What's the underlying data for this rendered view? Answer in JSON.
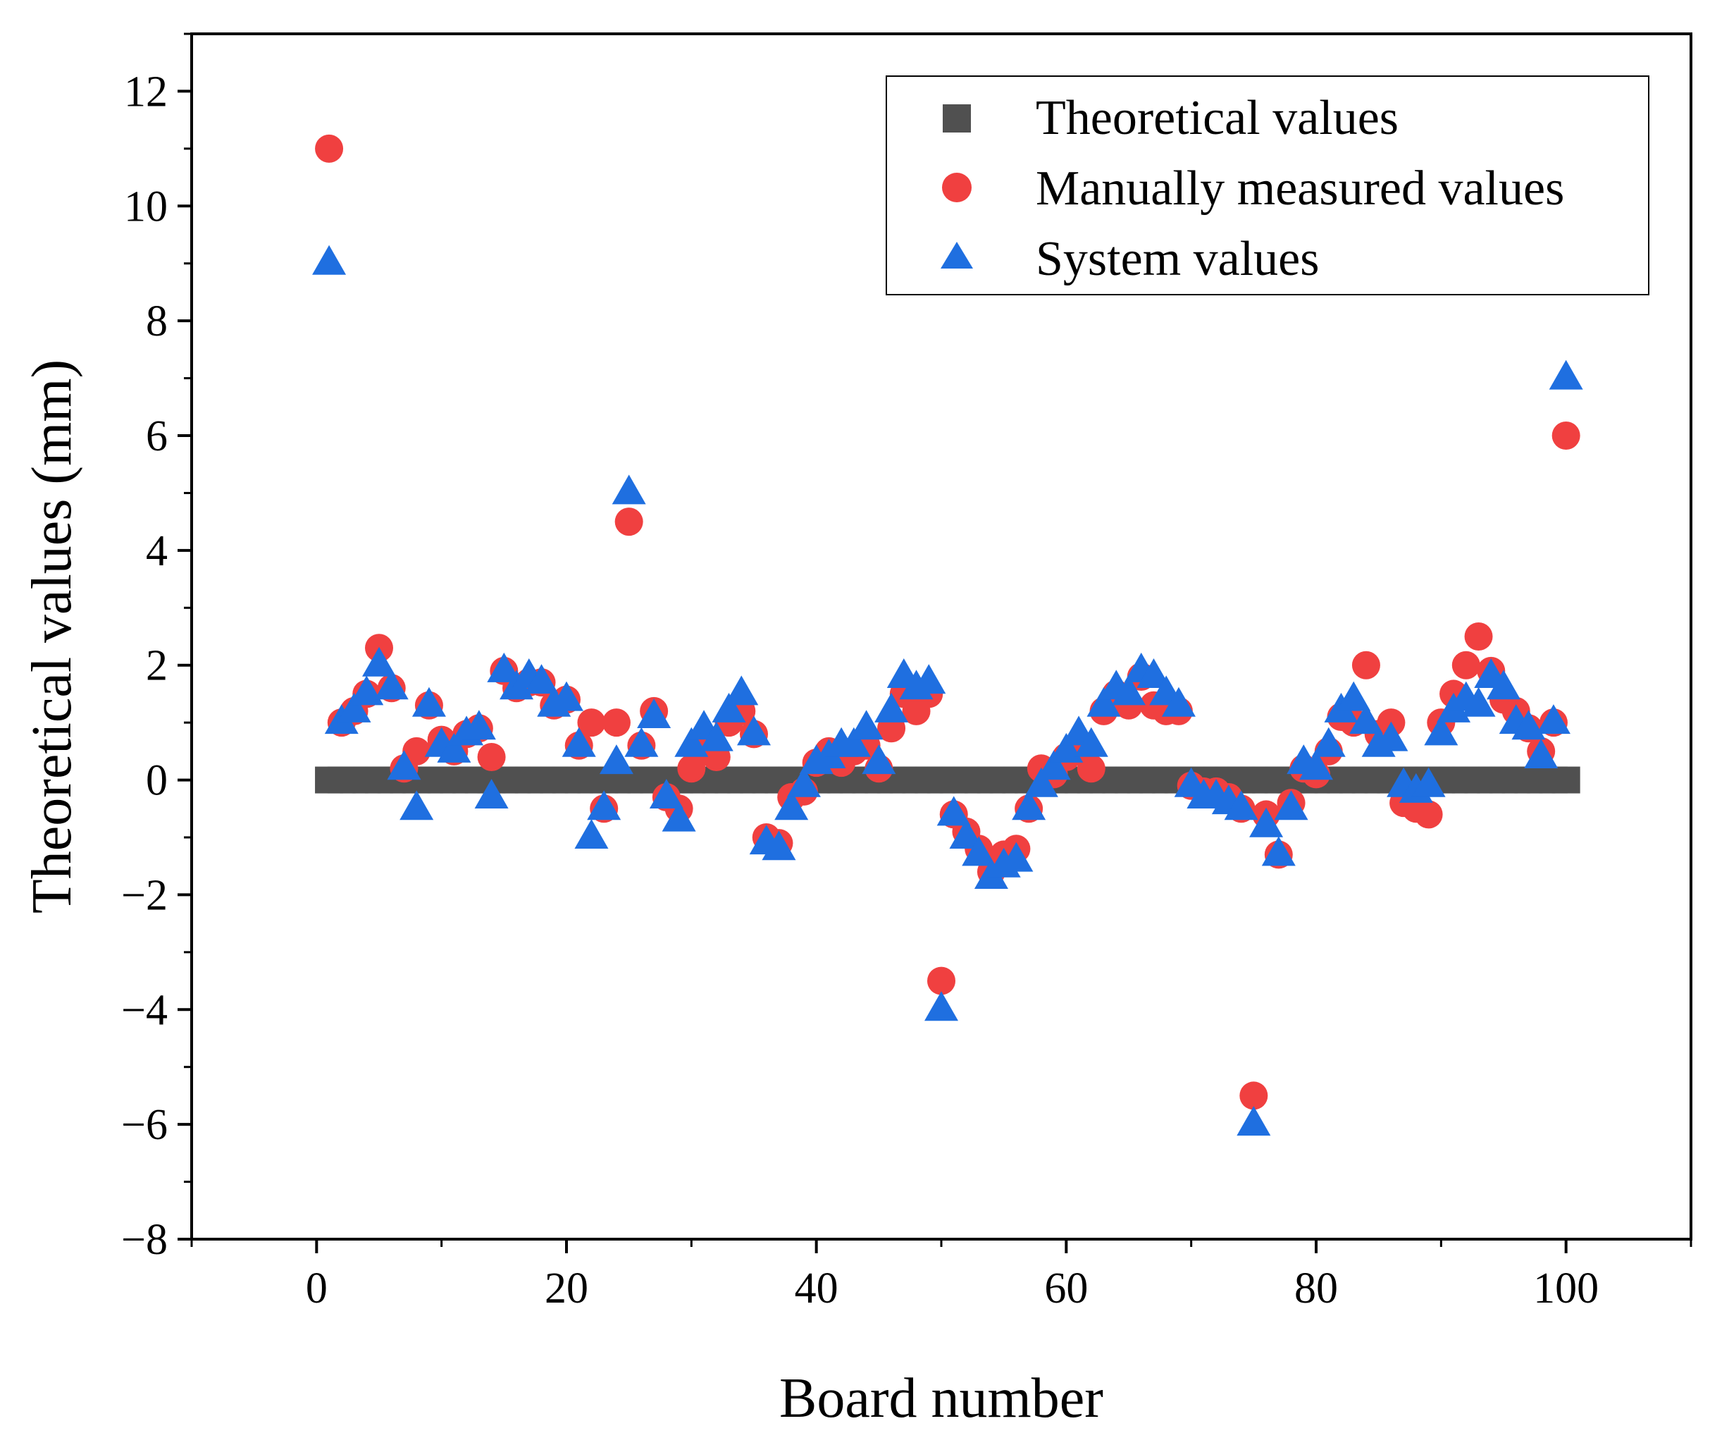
{
  "chart_data": {
    "type": "scatter",
    "title": "",
    "xlabel": "Board number",
    "ylabel": "Theoretical values (mm)",
    "xlim": [
      -10,
      110
    ],
    "ylim": [
      -8,
      13
    ],
    "x_ticks": [
      0,
      20,
      40,
      60,
      80,
      100
    ],
    "y_ticks": [
      -8,
      -6,
      -4,
      -2,
      0,
      2,
      4,
      6,
      8,
      10,
      12
    ],
    "x_tick_labels": [
      "0",
      "20",
      "40",
      "60",
      "80",
      "100"
    ],
    "y_tick_labels": [
      "−8",
      "−6",
      "−4",
      "−2",
      "0",
      "2",
      "4",
      "6",
      "8",
      "10",
      "12"
    ],
    "legend_position": "top-right",
    "colors": {
      "theoretical": "#505050",
      "manual": "#f04040",
      "system": "#1f6fe0"
    },
    "series": [
      {
        "name": "Theoretical values",
        "marker": "square",
        "x": [
          1,
          2,
          3,
          4,
          5,
          6,
          7,
          8,
          9,
          10,
          11,
          12,
          13,
          14,
          15,
          16,
          17,
          18,
          19,
          20,
          21,
          22,
          23,
          24,
          25,
          26,
          27,
          28,
          29,
          30,
          31,
          32,
          33,
          34,
          35,
          36,
          37,
          38,
          39,
          40,
          41,
          42,
          43,
          44,
          45,
          46,
          47,
          48,
          49,
          50,
          51,
          52,
          53,
          54,
          55,
          56,
          57,
          58,
          59,
          60,
          61,
          62,
          63,
          64,
          65,
          66,
          67,
          68,
          69,
          70,
          71,
          72,
          73,
          74,
          75,
          76,
          77,
          78,
          79,
          80,
          81,
          82,
          83,
          84,
          85,
          86,
          87,
          88,
          89,
          90,
          91,
          92,
          93,
          94,
          95,
          96,
          97,
          98,
          99,
          100
        ],
        "values": [
          0,
          0,
          0,
          0,
          0,
          0,
          0,
          0,
          0,
          0,
          0,
          0,
          0,
          0,
          0,
          0,
          0,
          0,
          0,
          0,
          0,
          0,
          0,
          0,
          0,
          0,
          0,
          0,
          0,
          0,
          0,
          0,
          0,
          0,
          0,
          0,
          0,
          0,
          0,
          0,
          0,
          0,
          0,
          0,
          0,
          0,
          0,
          0,
          0,
          0,
          0,
          0,
          0,
          0,
          0,
          0,
          0,
          0,
          0,
          0,
          0,
          0,
          0,
          0,
          0,
          0,
          0,
          0,
          0,
          0,
          0,
          0,
          0,
          0,
          0,
          0,
          0,
          0,
          0,
          0,
          0,
          0,
          0,
          0,
          0,
          0,
          0,
          0,
          0,
          0,
          0,
          0,
          0,
          0,
          0,
          0,
          0,
          0,
          0,
          0
        ]
      },
      {
        "name": "Manually measured values",
        "marker": "circle",
        "x": [
          1,
          2,
          3,
          4,
          5,
          6,
          7,
          8,
          9,
          10,
          11,
          12,
          13,
          14,
          15,
          16,
          17,
          18,
          19,
          20,
          21,
          22,
          23,
          24,
          25,
          26,
          27,
          28,
          29,
          30,
          31,
          32,
          33,
          34,
          35,
          36,
          37,
          38,
          39,
          40,
          41,
          42,
          43,
          44,
          45,
          46,
          47,
          48,
          49,
          50,
          51,
          52,
          53,
          54,
          55,
          56,
          57,
          58,
          59,
          60,
          61,
          62,
          63,
          64,
          65,
          66,
          67,
          68,
          69,
          70,
          71,
          72,
          73,
          74,
          75,
          76,
          77,
          78,
          79,
          80,
          81,
          82,
          83,
          84,
          85,
          86,
          87,
          88,
          89,
          90,
          91,
          92,
          93,
          94,
          95,
          96,
          97,
          98,
          99,
          100
        ],
        "values": [
          11,
          1.0,
          1.2,
          1.5,
          2.3,
          1.6,
          0.2,
          0.5,
          1.3,
          0.7,
          0.5,
          0.8,
          0.9,
          0.4,
          1.9,
          1.6,
          1.7,
          1.7,
          1.3,
          1.4,
          0.6,
          1.0,
          -0.5,
          1.0,
          4.5,
          0.6,
          1.2,
          -0.3,
          -0.5,
          0.2,
          0.5,
          0.4,
          1.0,
          1.2,
          0.8,
          -1.0,
          -1.1,
          -0.3,
          -0.2,
          0.3,
          0.5,
          0.3,
          0.5,
          0.6,
          0.2,
          0.9,
          1.5,
          1.2,
          1.5,
          -3.5,
          -0.6,
          -0.9,
          -1.2,
          -1.6,
          -1.3,
          -1.2,
          -0.5,
          0.2,
          0.1,
          0.4,
          0.5,
          0.2,
          1.2,
          1.5,
          1.3,
          1.8,
          1.3,
          1.2,
          1.2,
          -0.1,
          -0.2,
          -0.2,
          -0.3,
          -0.5,
          -5.5,
          -0.6,
          -1.3,
          -0.4,
          0.2,
          0.1,
          0.5,
          1.1,
          1.0,
          2.0,
          0.8,
          1.0,
          -0.4,
          -0.5,
          -0.6,
          1.0,
          1.5,
          2.0,
          2.5,
          1.9,
          1.4,
          1.2,
          0.9,
          0.5,
          1.0,
          6.0
        ]
      },
      {
        "name": "System values",
        "marker": "triangle",
        "x": [
          1,
          2,
          3,
          4,
          5,
          6,
          7,
          8,
          9,
          10,
          11,
          12,
          13,
          14,
          15,
          16,
          17,
          18,
          19,
          20,
          21,
          22,
          23,
          24,
          25,
          26,
          27,
          28,
          29,
          30,
          31,
          32,
          33,
          34,
          35,
          36,
          37,
          38,
          39,
          40,
          41,
          42,
          43,
          44,
          45,
          46,
          47,
          48,
          49,
          50,
          51,
          52,
          53,
          54,
          55,
          56,
          57,
          58,
          59,
          60,
          61,
          62,
          63,
          64,
          65,
          66,
          67,
          68,
          69,
          70,
          71,
          72,
          73,
          74,
          75,
          76,
          77,
          78,
          79,
          80,
          81,
          82,
          83,
          84,
          85,
          86,
          87,
          88,
          89,
          90,
          91,
          92,
          93,
          94,
          95,
          96,
          97,
          98,
          99,
          100
        ],
        "values": [
          9,
          1.0,
          1.2,
          1.5,
          2.0,
          1.6,
          0.2,
          -0.5,
          1.3,
          0.6,
          0.5,
          0.8,
          0.9,
          -0.3,
          1.9,
          1.6,
          1.8,
          1.7,
          1.3,
          1.4,
          0.6,
          -1.0,
          -0.5,
          0.3,
          5.0,
          0.6,
          1.1,
          -0.3,
          -0.7,
          0.6,
          0.9,
          0.7,
          1.2,
          1.5,
          0.8,
          -1.1,
          -1.2,
          -0.5,
          -0.1,
          0.3,
          0.4,
          0.6,
          0.6,
          0.9,
          0.3,
          1.2,
          1.8,
          1.6,
          1.7,
          -4.0,
          -0.6,
          -1.0,
          -1.3,
          -1.7,
          -1.5,
          -1.4,
          -0.5,
          -0.1,
          0.2,
          0.5,
          0.8,
          0.6,
          1.3,
          1.6,
          1.5,
          1.9,
          1.8,
          1.5,
          1.3,
          -0.1,
          -0.3,
          -0.3,
          -0.4,
          -0.5,
          -6.0,
          -0.8,
          -1.3,
          -0.5,
          0.3,
          0.2,
          0.6,
          1.2,
          1.4,
          1.0,
          0.6,
          0.7,
          -0.1,
          -0.2,
          -0.1,
          0.8,
          1.2,
          1.4,
          1.3,
          1.8,
          1.6,
          1.0,
          0.9,
          0.4,
          1.0,
          7.0
        ]
      }
    ]
  }
}
